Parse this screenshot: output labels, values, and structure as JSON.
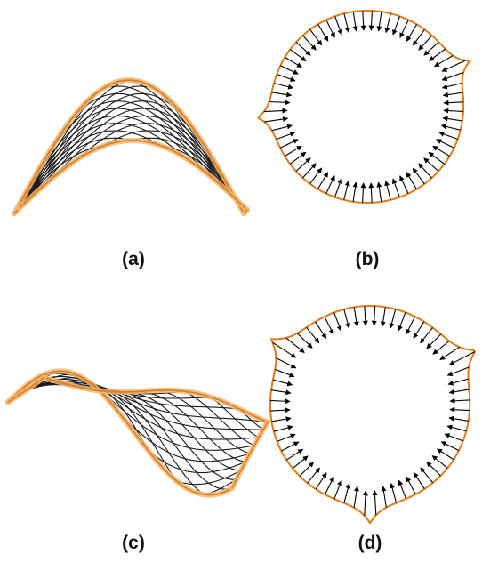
{
  "figure": {
    "panels": [
      {
        "id": "a",
        "label": "(a)",
        "kind": "ruled-surface-arch"
      },
      {
        "id": "b",
        "label": "(b)",
        "kind": "boundary-vector-field-two-cusps"
      },
      {
        "id": "c",
        "label": "(c)",
        "kind": "ruled-surface-saddle"
      },
      {
        "id": "d",
        "label": "(d)",
        "kind": "boundary-vector-field-three-cusps"
      }
    ],
    "colors": {
      "outline": "#e07b1a",
      "outline_halo": "#f2b874",
      "mesh": "#1a1a1a",
      "arrow": "#000000"
    }
  }
}
